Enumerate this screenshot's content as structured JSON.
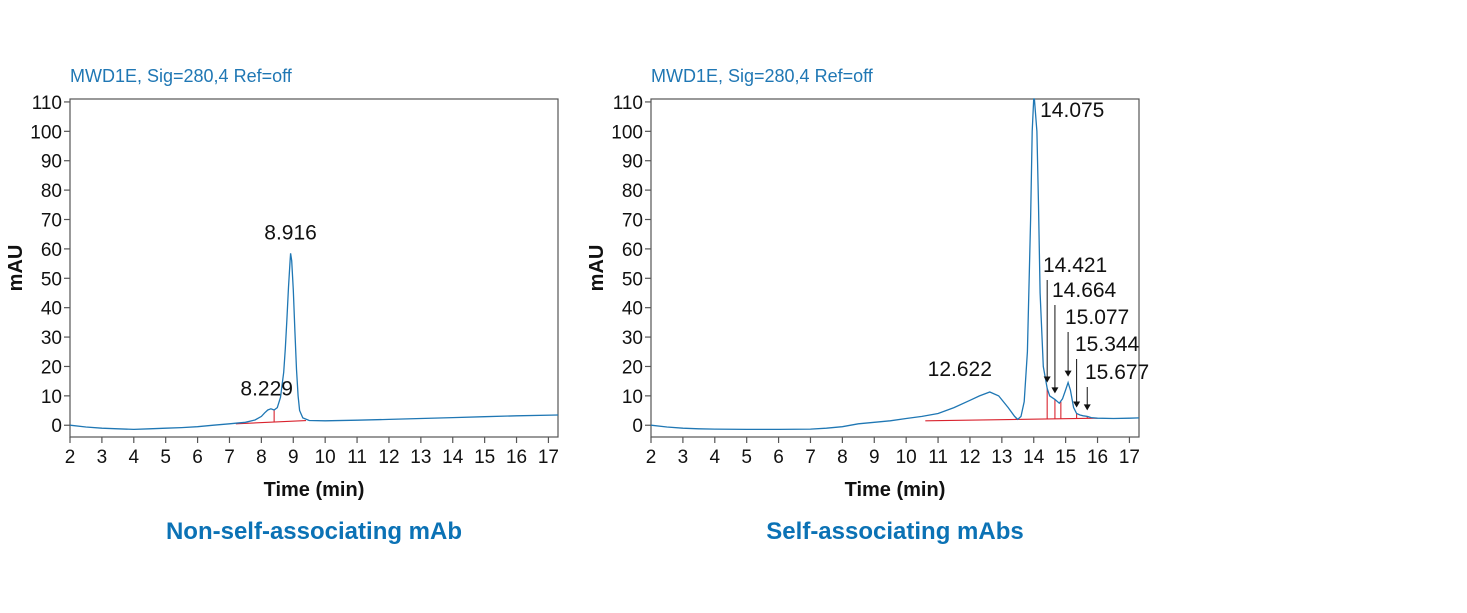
{
  "chart_data": [
    {
      "type": "line",
      "subtitle": "MWD1E, Sig=280,4 Ref=off",
      "caption": "Non-self-associating mAb",
      "xlabel": "Time (min)",
      "ylabel": "mAU",
      "xlim": [
        2,
        17.3
      ],
      "ylim": [
        -4,
        111
      ],
      "xticks": [
        2,
        3,
        4,
        5,
        6,
        7,
        8,
        9,
        10,
        11,
        12,
        13,
        14,
        15,
        16,
        17
      ],
      "yticks": [
        0,
        10,
        20,
        30,
        40,
        50,
        60,
        70,
        80,
        90,
        100,
        110
      ],
      "grid": false,
      "baseline_color": "#1f77b4",
      "integration_color": "#d9232e",
      "signal": {
        "x": [
          2.0,
          2.5,
          3.0,
          3.5,
          4.0,
          4.5,
          5.0,
          5.5,
          6.0,
          6.5,
          7.0,
          7.2,
          7.5,
          7.8,
          8.0,
          8.1,
          8.2,
          8.3,
          8.4,
          8.5,
          8.6,
          8.7,
          8.75,
          8.8,
          8.85,
          8.9,
          8.916,
          8.95,
          9.0,
          9.05,
          9.1,
          9.15,
          9.2,
          9.3,
          9.5,
          10.0,
          11.0,
          12.0,
          13.0,
          14.0,
          15.0,
          16.0,
          17.3
        ],
        "y": [
          0.0,
          -0.6,
          -1.0,
          -1.2,
          -1.4,
          -1.2,
          -1.0,
          -0.8,
          -0.5,
          0.0,
          0.5,
          0.7,
          1.0,
          1.8,
          3.0,
          4.2,
          5.2,
          5.6,
          5.2,
          6.0,
          9.5,
          18.0,
          26.0,
          36.0,
          47.0,
          56.0,
          58.5,
          56.0,
          46.0,
          32.0,
          19.0,
          10.0,
          5.0,
          2.5,
          1.6,
          1.5,
          1.7,
          2.0,
          2.3,
          2.6,
          2.9,
          3.2,
          3.5
        ]
      },
      "peaks": [
        {
          "label": "8.229",
          "x": 8.229,
          "y": 5.3
        },
        {
          "label": "8.916",
          "x": 8.916,
          "y": 58.5
        }
      ],
      "integration_baseline": {
        "x": [
          7.2,
          9.4
        ],
        "y": [
          0.5,
          1.6
        ]
      },
      "integration_drops": [
        {
          "x": 8.4,
          "y": 5.2
        }
      ]
    },
    {
      "type": "line",
      "subtitle": "MWD1E, Sig=280,4 Ref=off",
      "caption": "Self-associating mAbs",
      "xlabel": "Time (min)",
      "ylabel": "mAU",
      "xlim": [
        2,
        17.3
      ],
      "ylim": [
        -4,
        111
      ],
      "xticks": [
        2,
        3,
        4,
        5,
        6,
        7,
        8,
        9,
        10,
        11,
        12,
        13,
        14,
        15,
        16,
        17
      ],
      "yticks": [
        0,
        10,
        20,
        30,
        40,
        50,
        60,
        70,
        80,
        90,
        100,
        110
      ],
      "grid": false,
      "baseline_color": "#1f77b4",
      "integration_color": "#d9232e",
      "signal": {
        "x": [
          2.0,
          2.5,
          3.0,
          3.5,
          4.0,
          5.0,
          6.0,
          7.0,
          7.5,
          8.0,
          8.5,
          9.0,
          9.5,
          10.0,
          10.5,
          11.0,
          11.5,
          12.0,
          12.3,
          12.622,
          12.9,
          13.2,
          13.4,
          13.5,
          13.6,
          13.7,
          13.8,
          13.9,
          13.95,
          14.0,
          14.02,
          14.1,
          14.15,
          14.2,
          14.3,
          14.421,
          14.5,
          14.664,
          14.8,
          14.9,
          15.0,
          15.077,
          15.15,
          15.25,
          15.344,
          15.45,
          15.55,
          15.677,
          15.8,
          16.0,
          16.5,
          17.0,
          17.3
        ],
        "y": [
          0.0,
          -0.6,
          -1.0,
          -1.2,
          -1.3,
          -1.4,
          -1.4,
          -1.3,
          -1.0,
          -0.5,
          0.5,
          1.0,
          1.5,
          2.3,
          3.0,
          4.0,
          6.0,
          8.5,
          10.0,
          11.3,
          10.0,
          6.0,
          3.0,
          2.0,
          3.0,
          8.0,
          25.0,
          70.0,
          100.0,
          113.0,
          113.0,
          100.0,
          75.0,
          45.0,
          20.0,
          12.5,
          10.0,
          8.8,
          7.5,
          9.0,
          12.0,
          14.5,
          12.0,
          6.0,
          4.0,
          3.5,
          3.2,
          3.0,
          2.6,
          2.4,
          2.3,
          2.4,
          2.5
        ]
      },
      "peaks": [
        {
          "label": "12.622",
          "x": 12.622,
          "y": 11.3
        },
        {
          "label": "14.075",
          "x": 14.075,
          "y": 110
        },
        {
          "label": "14.421",
          "x": 14.421,
          "y": 12.5
        },
        {
          "label": "14.664",
          "x": 14.664,
          "y": 8.8
        },
        {
          "label": "15.077",
          "x": 15.077,
          "y": 14.5
        },
        {
          "label": "15.344",
          "x": 15.344,
          "y": 4.0
        },
        {
          "label": "15.677",
          "x": 15.677,
          "y": 3.0
        }
      ],
      "integration_baseline": {
        "x": [
          10.6,
          16.0
        ],
        "y": [
          1.5,
          2.4
        ]
      },
      "integration_drops": [
        {
          "x": 13.45,
          "y": 2.5
        },
        {
          "x": 14.421,
          "y": 12.5
        },
        {
          "x": 14.664,
          "y": 8.8
        },
        {
          "x": 14.85,
          "y": 8.0
        },
        {
          "x": 15.344,
          "y": 4.0
        },
        {
          "x": 15.677,
          "y": 3.0
        }
      ]
    }
  ]
}
